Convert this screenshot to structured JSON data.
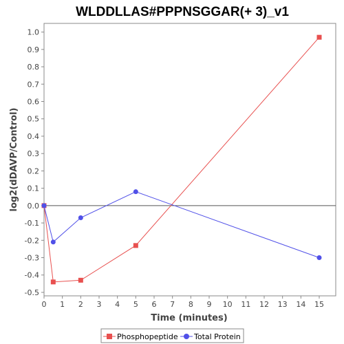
{
  "chart_data": {
    "type": "line",
    "title": "WLDDLLAS#PPPNSGGAR(+ 3)_v1",
    "xlabel": "Time (minutes)",
    "ylabel": "log2(dDAVP/Control)",
    "xlim": [
      0,
      15.9
    ],
    "ylim": [
      -0.52,
      1.05
    ],
    "x_ticks": [
      0,
      1,
      2,
      3,
      4,
      5,
      6,
      7,
      8,
      9,
      10,
      11,
      12,
      13,
      14,
      15
    ],
    "y_ticks": [
      -0.5,
      -0.4,
      -0.3,
      -0.2,
      -0.1,
      0.0,
      0.1,
      0.2,
      0.3,
      0.4,
      0.5,
      0.6,
      0.7,
      0.8,
      0.9,
      1.0
    ],
    "y_tick_labels": [
      "-0.5",
      "-0.4",
      "-0.3",
      "-0.2",
      "-0.1",
      "0.0",
      "0.1",
      "0.2",
      "0.3",
      "0.4",
      "0.5",
      "0.6",
      "0.7",
      "0.8",
      "0.9",
      "1.0"
    ],
    "zero_line": true,
    "grid": false,
    "legend_position": "bottom-center",
    "series": [
      {
        "name": "Phosphopeptide",
        "color": "#e8504f",
        "marker": "square",
        "x": [
          0,
          0.5,
          2,
          5,
          15
        ],
        "y": [
          0.0,
          -0.44,
          -0.43,
          -0.23,
          0.97
        ]
      },
      {
        "name": "Total Protein",
        "color": "#5050e8",
        "marker": "circle",
        "x": [
          0,
          0.5,
          2,
          5,
          15
        ],
        "y": [
          0.0,
          -0.21,
          -0.07,
          0.08,
          -0.3
        ]
      }
    ]
  }
}
